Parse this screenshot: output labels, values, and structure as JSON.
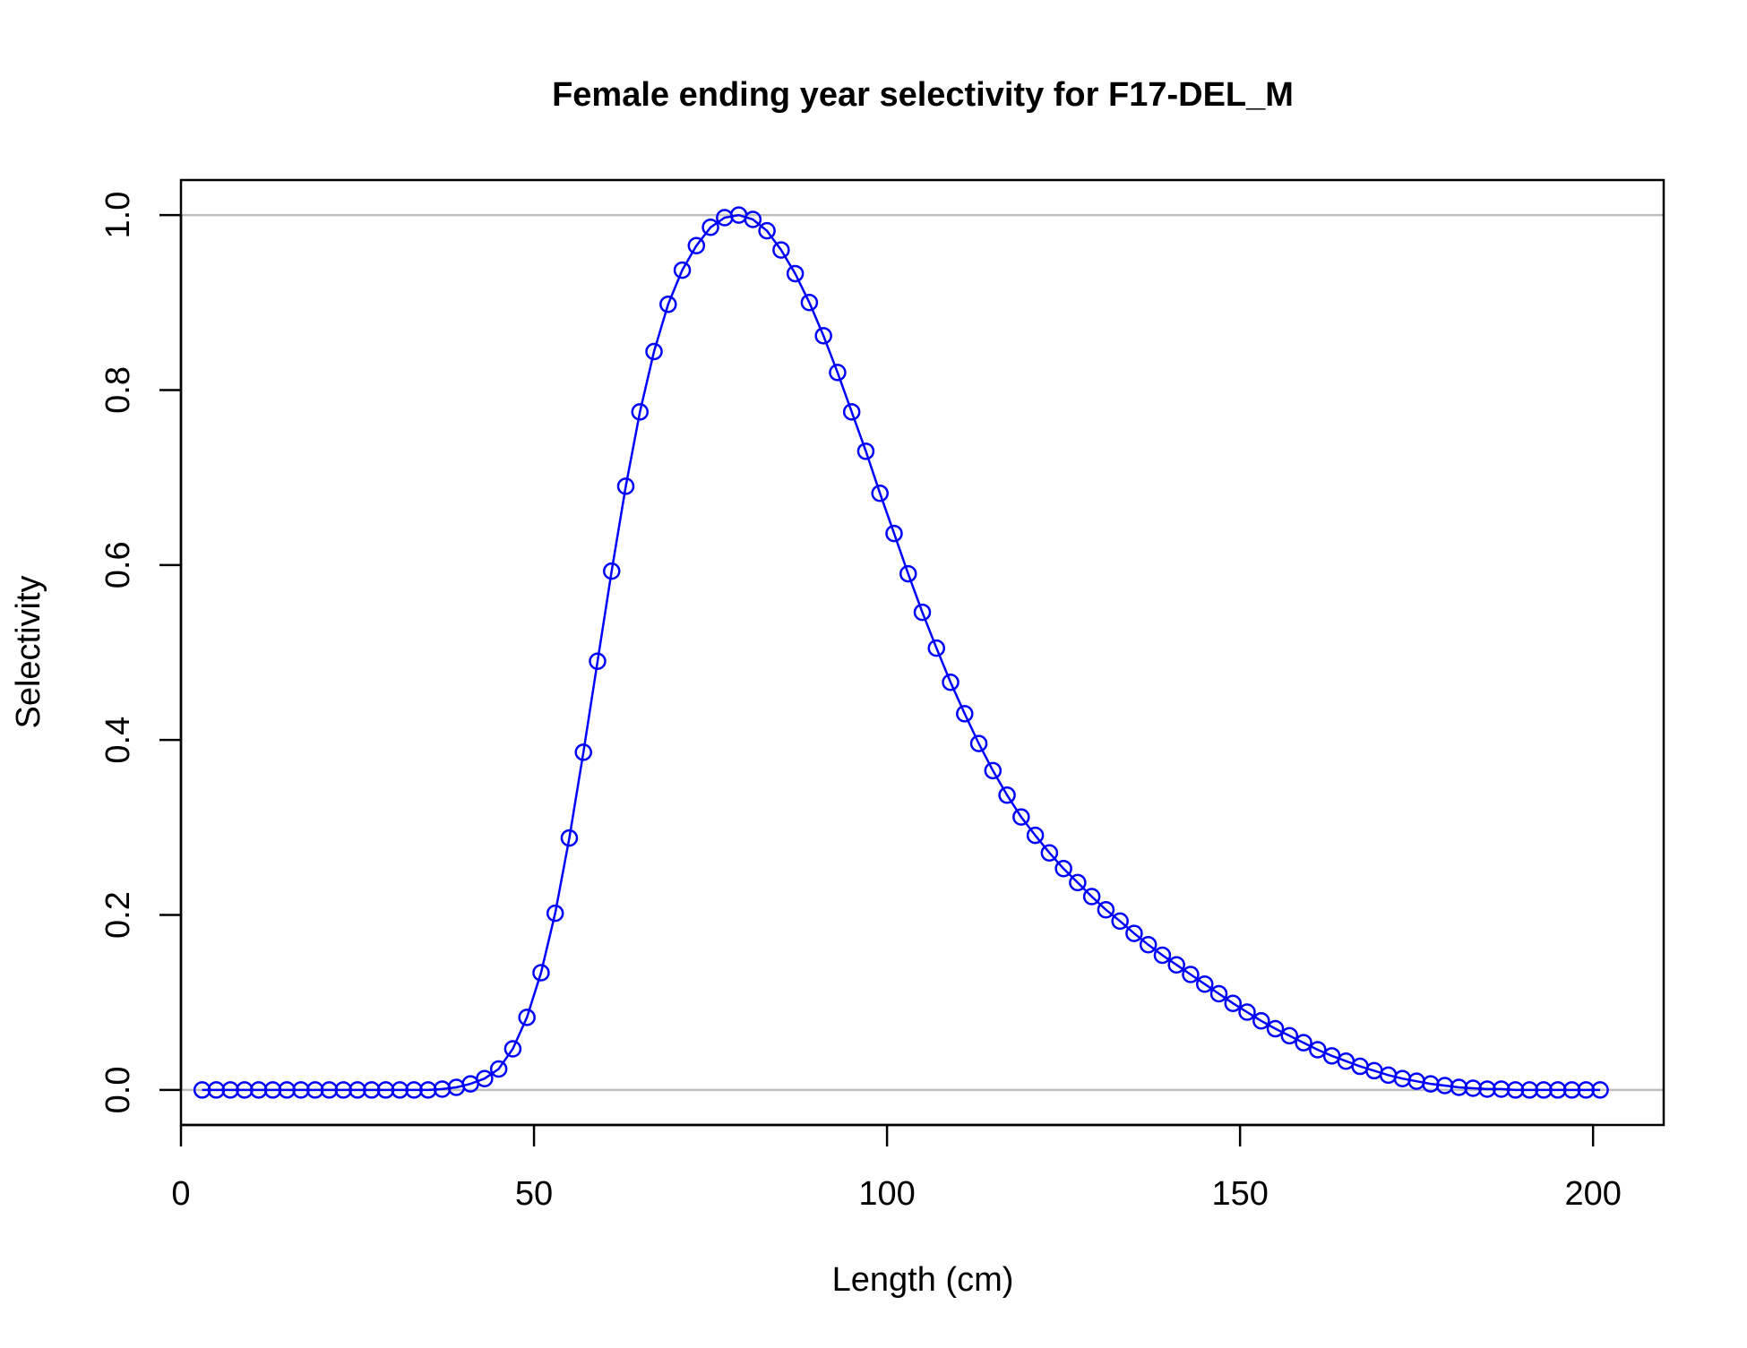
{
  "chart_data": {
    "type": "line",
    "title": "Female ending year selectivity for F17-DEL_M",
    "xlabel": "Length (cm)",
    "ylabel": "Selectivity",
    "xlim": [
      0,
      210
    ],
    "ylim": [
      -0.04,
      1.04
    ],
    "x_ticks": [
      0,
      50,
      100,
      150,
      200
    ],
    "x_tick_labels": [
      "0",
      "50",
      "100",
      "150",
      "200"
    ],
    "y_ticks": [
      0.0,
      0.2,
      0.4,
      0.6,
      0.8,
      1.0
    ],
    "y_tick_labels": [
      "0.0",
      "0.2",
      "0.4",
      "0.6",
      "0.8",
      "1.0"
    ],
    "reference_lines": [
      0.0,
      1.0
    ],
    "grid": false,
    "colors": {
      "series": "#0000ff",
      "reference": "#bebebe",
      "axis": "#000000"
    },
    "series": [
      {
        "x": [
          3,
          5,
          7,
          9,
          11,
          13,
          15,
          17,
          19,
          21,
          23,
          25,
          27,
          29,
          31,
          33,
          35,
          37,
          39,
          41,
          43,
          45,
          47,
          49,
          51,
          53,
          55,
          57,
          59,
          61,
          63,
          65,
          67,
          69,
          71,
          73,
          75,
          77,
          79,
          81,
          83,
          85,
          87,
          89,
          91,
          93,
          95,
          97,
          99,
          101,
          103,
          105,
          107,
          109,
          111,
          113,
          115,
          117,
          119,
          121,
          123,
          125,
          127,
          129,
          131,
          133,
          135,
          137,
          139,
          141,
          143,
          145,
          147,
          149,
          151,
          153,
          155,
          157,
          159,
          161,
          163,
          165,
          167,
          169,
          171,
          173,
          175,
          177,
          179,
          181,
          183,
          185,
          187,
          189,
          191,
          193,
          195,
          197,
          199,
          201
        ],
        "values": [
          0.0,
          0.0,
          0.0,
          0.0,
          0.0,
          0.0,
          0.0,
          0.0,
          0.0,
          0.0,
          0.0,
          0.0,
          0.0,
          0.0,
          0.0,
          0.0,
          0.0,
          0.001,
          0.003,
          0.007,
          0.013,
          0.024,
          0.047,
          0.083,
          0.134,
          0.202,
          0.288,
          0.386,
          0.49,
          0.593,
          0.69,
          0.775,
          0.844,
          0.898,
          0.937,
          0.965,
          0.986,
          0.997,
          1.0,
          0.995,
          0.982,
          0.96,
          0.933,
          0.9,
          0.862,
          0.82,
          0.775,
          0.73,
          0.682,
          0.636,
          0.59,
          0.546,
          0.505,
          0.466,
          0.43,
          0.396,
          0.365,
          0.337,
          0.312,
          0.291,
          0.271,
          0.253,
          0.237,
          0.221,
          0.206,
          0.193,
          0.179,
          0.166,
          0.154,
          0.143,
          0.132,
          0.121,
          0.11,
          0.099,
          0.089,
          0.079,
          0.07,
          0.062,
          0.054,
          0.046,
          0.039,
          0.033,
          0.027,
          0.022,
          0.017,
          0.013,
          0.01,
          0.007,
          0.005,
          0.003,
          0.002,
          0.001,
          0.001,
          0.0,
          0.0,
          0.0,
          0.0,
          0.0,
          0.0,
          0.0
        ]
      }
    ]
  }
}
